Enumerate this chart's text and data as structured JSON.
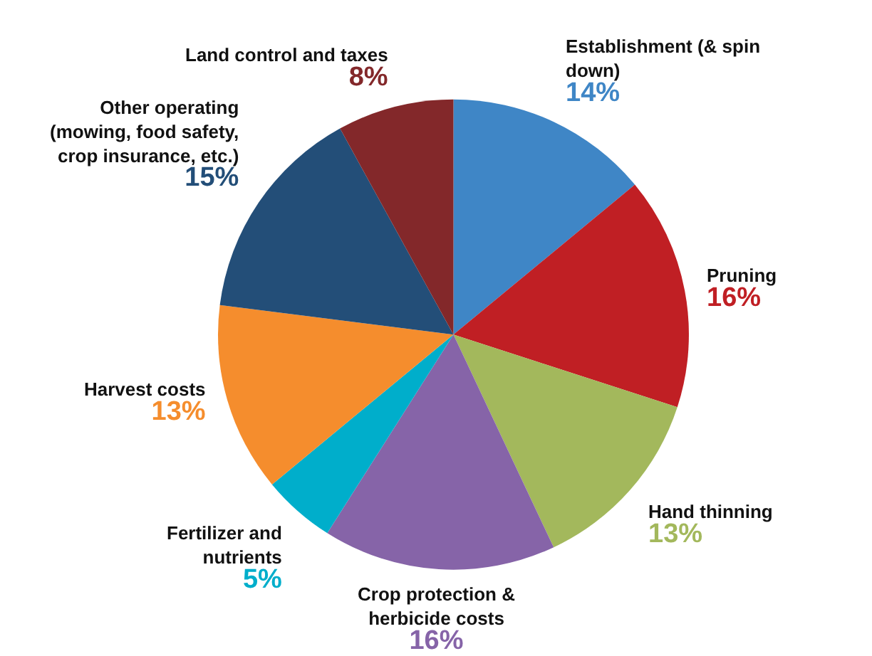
{
  "chart_data": {
    "type": "pie",
    "categories": [
      "Establishment (& spin down)",
      "Pruning",
      "Hand thinning",
      "Crop protection & herbicide costs",
      "Fertilizer and nutrients",
      "Harvest costs",
      "Other operating (mowing, food safety, crop insurance, etc.)",
      "Land control and taxes"
    ],
    "values": [
      14,
      16,
      13,
      16,
      5,
      13,
      15,
      8
    ],
    "value_labels": [
      "14%",
      "16%",
      "13%",
      "16%",
      "5%",
      "13%",
      "15%",
      "8%"
    ],
    "colors": [
      "#3f86c6",
      "#c01f24",
      "#a3b85c",
      "#8664a8",
      "#00aecb",
      "#f58d2d",
      "#234e78",
      "#83282a"
    ]
  }
}
